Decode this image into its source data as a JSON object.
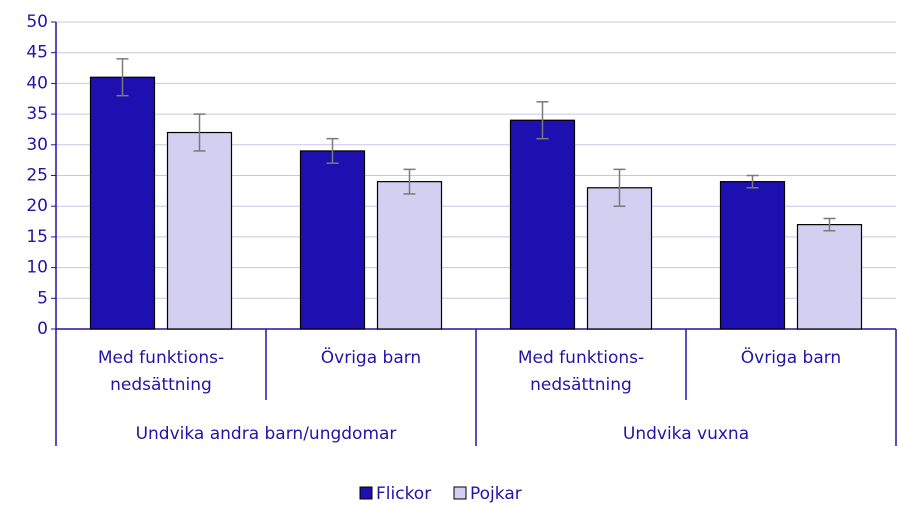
{
  "chart_data": {
    "type": "bar",
    "categories": [
      "Med funktions-\nnedsättning",
      "Övriga barn",
      "Med funktions-\nnedsättning",
      "Övriga barn"
    ],
    "groups": [
      "Undvika andra barn/ungdomar",
      "Undvika vuxna"
    ],
    "series": [
      {
        "name": "Flickor",
        "color": "#1e10b0",
        "values": [
          41,
          29,
          34,
          24
        ],
        "errors": [
          3,
          2,
          3,
          1
        ]
      },
      {
        "name": "Pojkar",
        "color": "#d2cff0",
        "values": [
          32,
          24,
          23,
          17
        ],
        "errors": [
          3,
          2,
          3,
          1
        ]
      }
    ],
    "ylim": [
      0,
      50
    ],
    "yticks": [
      0,
      5,
      10,
      15,
      20,
      25,
      30,
      35,
      40,
      45,
      50
    ],
    "grid": true,
    "legend": "bottom"
  }
}
